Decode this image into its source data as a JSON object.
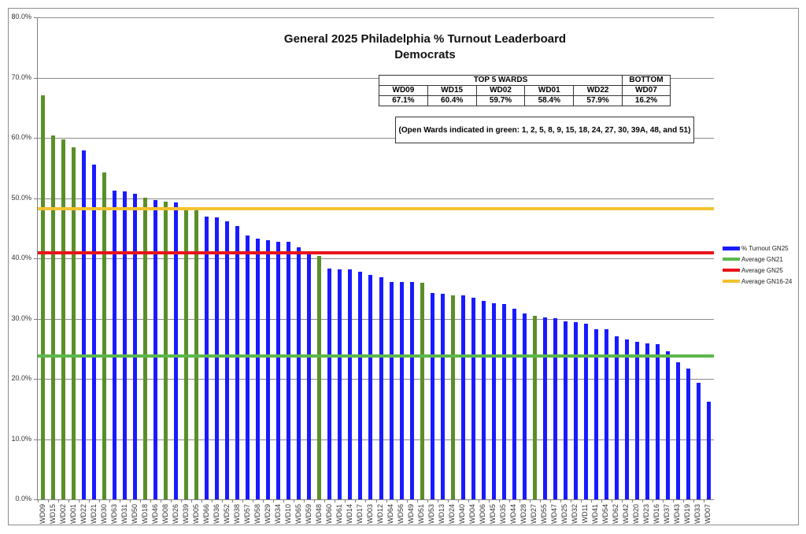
{
  "chart_data": {
    "type": "bar",
    "title": "General 2025 Philadelphia % Turnout Leaderboard",
    "subtitle": "Democrats",
    "xlabel": "",
    "ylabel": "",
    "ylim": [
      0,
      80
    ],
    "yticks": [
      "0.0%",
      "10.0%",
      "20.0%",
      "30.0%",
      "40.0%",
      "50.0%",
      "60.0%",
      "70.0%",
      "80.0%"
    ],
    "grid": true,
    "legend_position": "right",
    "categories": [
      "WD09",
      "WD15",
      "WD02",
      "WD01",
      "WD22",
      "WD21",
      "WD30",
      "WD63",
      "WD31",
      "WD50",
      "WD18",
      "WD46",
      "WD08",
      "WD26",
      "WD39",
      "WD05",
      "WD66",
      "WD36",
      "WD52",
      "WD38",
      "WD57",
      "WD58",
      "WD29",
      "WD34",
      "WD10",
      "WD65",
      "WD59",
      "WD48",
      "WD60",
      "WD61",
      "WD14",
      "WD17",
      "WD03",
      "WD12",
      "WD64",
      "WD56",
      "WD49",
      "WD51",
      "WD53",
      "WD13",
      "WD24",
      "WD40",
      "WD04",
      "WD06",
      "WD45",
      "WD35",
      "WD44",
      "WD28",
      "WD27",
      "WD55",
      "WD47",
      "WD25",
      "WD32",
      "WD11",
      "WD41",
      "WD54",
      "WD62",
      "WD42",
      "WD20",
      "WD23",
      "WD16",
      "WD37",
      "WD43",
      "WD19",
      "WD33",
      "WD07"
    ],
    "series": [
      {
        "name": "% Turnout GN25",
        "type": "bar",
        "color": "#1a1aff",
        "values": [
          67.1,
          60.4,
          59.7,
          58.4,
          57.9,
          55.6,
          54.3,
          51.2,
          51.1,
          50.7,
          50.1,
          49.7,
          49.4,
          49.3,
          48.5,
          48.5,
          46.9,
          46.8,
          46.2,
          45.4,
          43.8,
          43.3,
          43.0,
          42.8,
          42.7,
          41.8,
          41.1,
          40.4,
          38.3,
          38.2,
          38.2,
          37.8,
          37.3,
          36.9,
          36.1,
          36.1,
          36.1,
          36.0,
          34.2,
          34.1,
          33.9,
          33.8,
          33.5,
          32.9,
          32.5,
          32.4,
          31.6,
          30.8,
          30.5,
          30.2,
          30.1,
          29.6,
          29.4,
          29.1,
          28.3,
          28.3,
          27.0,
          26.6,
          26.1,
          25.9,
          25.7,
          24.6,
          22.7,
          21.7,
          19.4,
          16.2
        ]
      },
      {
        "name": "Average GN21",
        "type": "line",
        "color": "#5cb84c",
        "value": 23.8
      },
      {
        "name": "Average GN25",
        "type": "line",
        "color": "#e8141a",
        "value": 40.9
      },
      {
        "name": "Average GN16-24",
        "type": "line",
        "color": "#f2c230",
        "value": 48.2
      }
    ],
    "open_wards_green": [
      "WD09",
      "WD15",
      "WD02",
      "WD01",
      "WD30",
      "WD18",
      "WD08",
      "WD39",
      "WD05",
      "WD48",
      "WD51",
      "WD24",
      "WD27"
    ],
    "bar_colors": {
      "normal": "#1a1aff",
      "open_ward": "#5a8f29"
    },
    "leaderboard": {
      "top_header": "TOP 5 WARDS",
      "bottom_header": "BOTTOM",
      "top": [
        {
          "ward": "WD09",
          "pct": "67.1%"
        },
        {
          "ward": "WD15",
          "pct": "60.4%"
        },
        {
          "ward": "WD02",
          "pct": "59.7%"
        },
        {
          "ward": "WD01",
          "pct": "58.4%"
        },
        {
          "ward": "WD22",
          "pct": "57.9%"
        }
      ],
      "bottom": {
        "ward": "WD07",
        "pct": "16.2%"
      }
    },
    "annotation": "(Open Wards indicated  in green:  1, 2, 5, 8, 9, 15, 18, 24, 27, 30, 39A, 48, and 51)"
  }
}
